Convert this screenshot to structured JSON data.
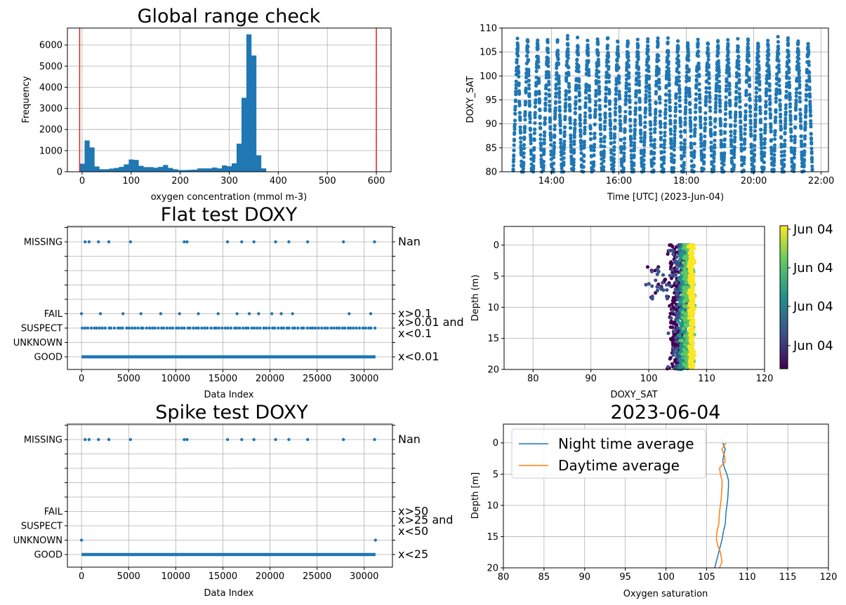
{
  "chart_data": [
    {
      "id": "hist",
      "type": "bar",
      "title": "Global range check",
      "xlabel": "oxygen concentration (mmol m-3)",
      "ylabel": "Frequency",
      "xlim": [
        -30,
        630
      ],
      "ylim": [
        0,
        6800
      ],
      "xticks": [
        0,
        100,
        200,
        300,
        400,
        500,
        600
      ],
      "yticks": [
        0,
        1000,
        2000,
        3000,
        4000,
        5000,
        6000
      ],
      "grid": true,
      "bar_color": "#1f77b4",
      "limit_lines": [
        -5,
        600
      ],
      "limit_color": "#d62728",
      "bin_width": 10,
      "bins_start": -5,
      "values": [
        380,
        1480,
        1150,
        250,
        120,
        120,
        150,
        180,
        230,
        350,
        580,
        560,
        280,
        220,
        220,
        190,
        230,
        320,
        180,
        120,
        80,
        80,
        90,
        100,
        160,
        160,
        160,
        200,
        160,
        300,
        260,
        400,
        1330,
        3500,
        6500,
        5500,
        780,
        160
      ]
    },
    {
      "id": "ts",
      "type": "scatter",
      "xlabel": "Time [UTC] (2023-Jun-04)",
      "ylabel": "DOXY_SAT",
      "xlim": [
        "12:32",
        "22:13"
      ],
      "ylim": [
        80,
        110
      ],
      "xticks": [
        "14:00",
        "16:00",
        "18:00",
        "20:00",
        "22:00"
      ],
      "yticks": [
        80,
        85,
        90,
        95,
        100,
        105,
        110
      ],
      "grid": true,
      "color": "#1f77b4",
      "start": "12:52",
      "end": "21:47",
      "profile_count": 30
    },
    {
      "id": "flat",
      "type": "scatter",
      "title": "Flat test DOXY",
      "xlabel": "Data Index",
      "xlim": [
        -1500,
        33000
      ],
      "xticks": [
        0,
        5000,
        10000,
        15000,
        20000,
        25000,
        30000
      ],
      "flag_levels": [
        "MISSING",
        "FAIL",
        "SUSPECT",
        "UNKNOWN",
        "GOOD"
      ],
      "right_labels": [
        "Nan",
        "x>0.1",
        "x>0.01 and",
        "x<0.1",
        "x<0.01"
      ],
      "color": "#1f77b4",
      "points": {
        "MISSING": [
          380,
          800,
          1800,
          2900,
          5200,
          10900,
          11200,
          15500,
          17000,
          18300,
          20600,
          22000,
          24000,
          27800,
          31100
        ],
        "FAIL": [
          0,
          2000,
          4400,
          6300,
          8400,
          10400,
          12400,
          14500,
          16500,
          17800,
          18800,
          20200,
          21200,
          22400,
          28400,
          30700
        ],
        "SUSPECT_range": [
          0,
          31200
        ],
        "GOOD_range": [
          0,
          31200
        ]
      }
    },
    {
      "id": "depth",
      "type": "scatter",
      "xlabel": "DOXY_SAT",
      "ylabel": "Depth (m)",
      "xlim": [
        75,
        120
      ],
      "ylim": [
        20,
        -3
      ],
      "xticks": [
        80,
        90,
        100,
        110,
        120
      ],
      "yticks": [
        0,
        5,
        10,
        15,
        20
      ],
      "grid": true,
      "colorbar_ticks": [
        "Jun 04",
        "Jun 04",
        "Jun 04",
        "Jun 04"
      ],
      "colormap": [
        "#440154",
        "#3b528b",
        "#21918c",
        "#5ec962",
        "#fde725"
      ]
    },
    {
      "id": "spike",
      "type": "scatter",
      "title": "Spike test DOXY",
      "xlabel": "Data Index",
      "xlim": [
        -1500,
        33000
      ],
      "xticks": [
        0,
        5000,
        10000,
        15000,
        20000,
        25000,
        30000
      ],
      "flag_levels": [
        "MISSING",
        "FAIL",
        "SUSPECT",
        "UNKNOWN",
        "GOOD"
      ],
      "right_labels": [
        "Nan",
        "x>50",
        "x>25 and",
        "x<50",
        "x<25"
      ],
      "color": "#1f77b4",
      "points": {
        "MISSING": [
          380,
          800,
          1800,
          2900,
          5200,
          10900,
          11200,
          15500,
          17000,
          18300,
          20600,
          22000,
          24000,
          27800,
          31100
        ],
        "UNKNOWN": [
          0,
          31200
        ],
        "GOOD_range": [
          0,
          31200
        ]
      }
    },
    {
      "id": "profile",
      "type": "line",
      "title": "2023-06-04",
      "xlabel": "Oxygen saturation",
      "ylabel": "Depth [m]",
      "xlim": [
        80,
        120
      ],
      "ylim": [
        20,
        -3
      ],
      "xticks": [
        80,
        85,
        90,
        95,
        100,
        105,
        110,
        115,
        120
      ],
      "yticks": [
        0,
        5,
        10,
        15,
        20
      ],
      "grid": true,
      "legend_position": "top-left",
      "series": [
        {
          "name": "Night time average",
          "color": "#1f77b4",
          "x": [
            107.0,
            107.3,
            107.1,
            107.0,
            107.2,
            107.5,
            107.7,
            107.7,
            107.6,
            107.4,
            107.3,
            107.1,
            106.9,
            106.7,
            106.5,
            106.2,
            106.0
          ],
          "y": [
            0,
            1,
            2,
            3,
            4,
            5,
            6,
            7,
            9,
            11,
            13,
            14,
            15.5,
            16.5,
            17.5,
            19,
            20
          ]
        },
        {
          "name": "Daytime average",
          "color": "#ff7f0e",
          "x": [
            107.4,
            106.9,
            107.2,
            107.3,
            106.6,
            106.7,
            106.9,
            106.9,
            106.8,
            106.6,
            106.5,
            106.3,
            106.2,
            106.4,
            106.7,
            106.9,
            106.6
          ],
          "y": [
            0,
            1,
            2,
            3,
            4,
            5,
            6,
            7,
            9,
            11,
            13,
            14,
            15.5,
            16.5,
            17.5,
            19,
            20
          ]
        }
      ]
    }
  ]
}
